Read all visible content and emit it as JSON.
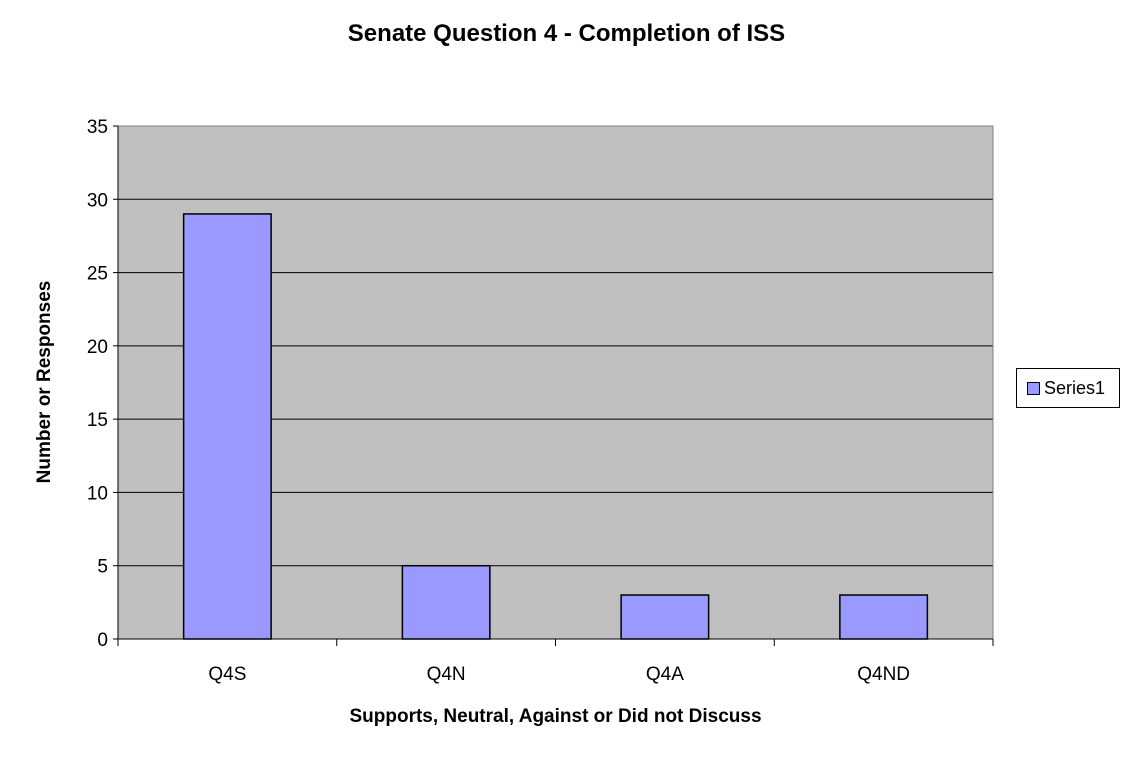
{
  "chart_data": {
    "type": "bar",
    "title": "Senate Question 4 - Completion of ISS",
    "xlabel": "Supports, Neutral, Against or Did not Discuss",
    "ylabel": "Number or Responses",
    "categories": [
      "Q4S",
      "Q4N",
      "Q4A",
      "Q4ND"
    ],
    "series": [
      {
        "name": "Series1",
        "values": [
          29,
          5,
          3,
          3
        ]
      }
    ],
    "ylim": [
      0,
      35
    ],
    "yticks": [
      0,
      5,
      10,
      15,
      20,
      25,
      30,
      35
    ],
    "grid": true,
    "legend_position": "right",
    "colors": {
      "bar": "#9999ff",
      "plot_background": "#c0c0c0",
      "gridline": "#000000"
    }
  }
}
